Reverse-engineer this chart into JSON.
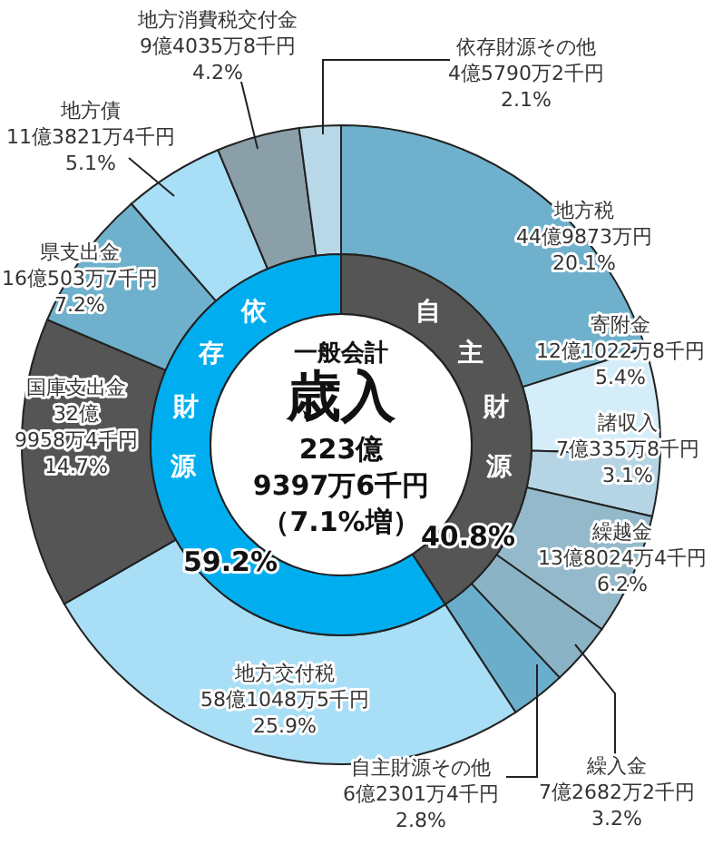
{
  "chart_data": [
    {
      "type": "donut",
      "categories": [
        "地方税",
        "寄附金",
        "諸収入",
        "繰越金",
        "繰入金",
        "自主財源その他",
        "地方交付税",
        "国庫支出金",
        "県支出金",
        "地方債",
        "地方消費税交付金",
        "依存財源その他"
      ],
      "values": [
        20.1,
        5.4,
        3.1,
        6.2,
        3.2,
        2.8,
        25.9,
        14.7,
        7.2,
        5.1,
        4.2,
        2.1
      ],
      "colors": [
        "#6fb1cc",
        "#d4edf8",
        "#b5d5e5",
        "#94b9cb",
        "#8ab3c5",
        "#6aaecb",
        "#a8def6",
        "#555555",
        "#6fb1cc",
        "#a8def6",
        "#8a9fa8",
        "#b8d8e8"
      ],
      "value_labels": [
        "44億9873万円\n20.1%",
        "12億1022万8千円\n5.4%",
        "7億335万8千円\n3.1%",
        "13億8024万4千円\n6.2%",
        "7億2682万2千円\n3.2%",
        "6億2301万4千円\n2.8%",
        "58億1048万5千円\n25.9%",
        "32億\n9958万4千円\n14.7%",
        "16億503万7千円\n7.2%",
        "11億3821万4千円\n5.1%",
        "9億4035万8千円\n4.2%",
        "4億5790万2千円\n2.1%"
      ]
    },
    {
      "type": "donut",
      "title": "一般会計",
      "subtitle": "歳入",
      "annotations": [
        "223億",
        "9397万6千円",
        "（7.1%増）"
      ],
      "categories": [
        "自主財源",
        "依存財源"
      ],
      "values": [
        40.8,
        59.2
      ],
      "colors": [
        "#555555",
        "#00aeef"
      ],
      "value_labels": [
        "40.8%",
        "59.2%"
      ]
    }
  ]
}
